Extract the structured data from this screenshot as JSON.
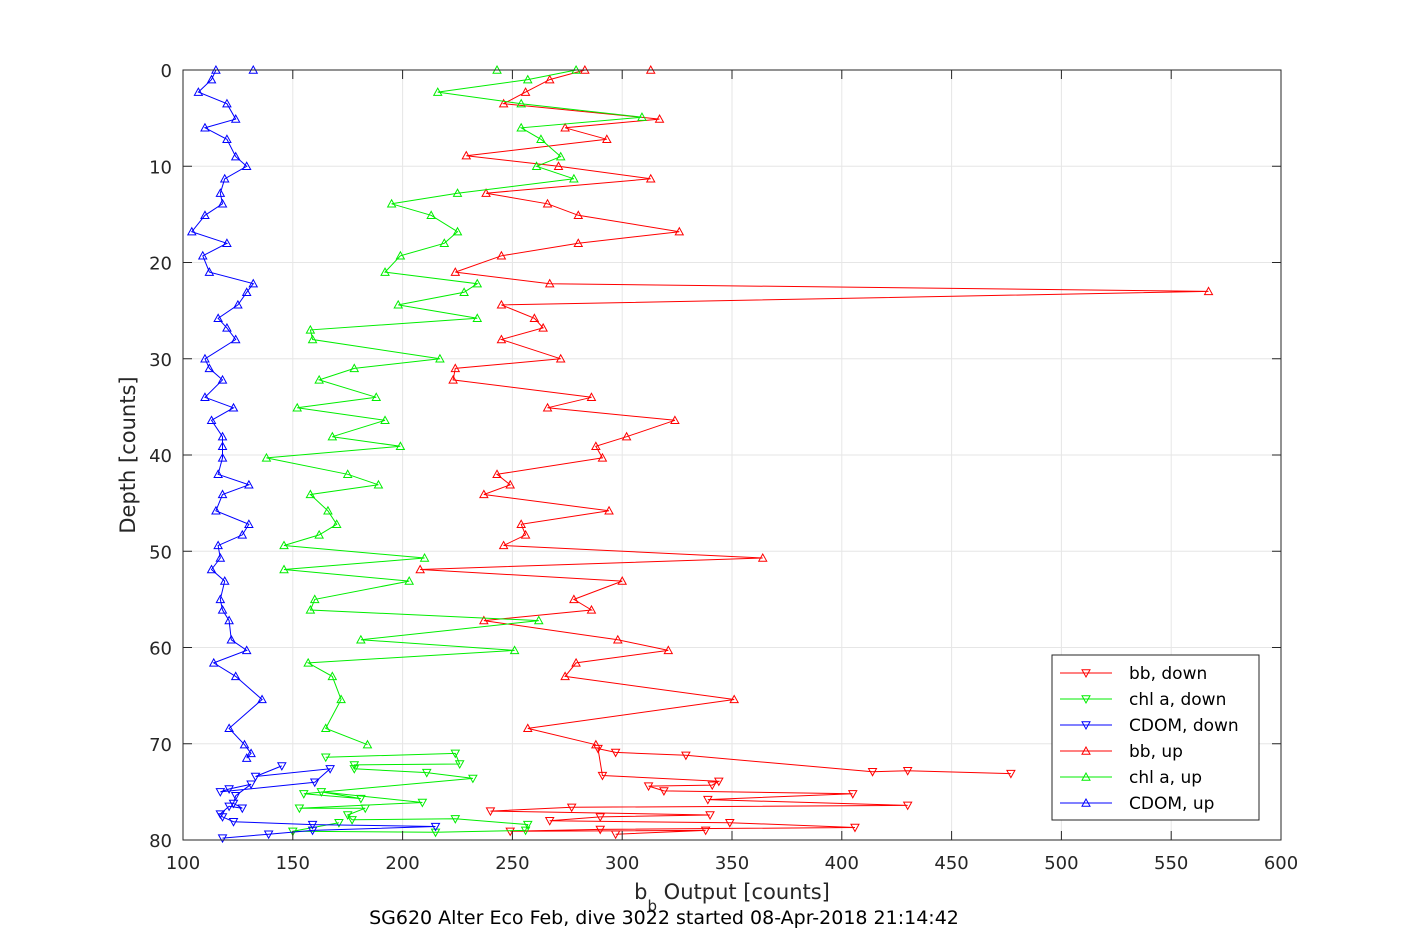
{
  "chart_data": {
    "type": "line",
    "xlabel_main": "b",
    "xlabel_sub": "b",
    "xlabel_rest": " Output [counts]",
    "ylabel": "Depth [counts]",
    "subtitle": "SG620 Alter Eco Feb, dive 3022 started 08-Apr-2018 21:14:42",
    "xlim": [
      100,
      600
    ],
    "ylim": [
      0,
      80
    ],
    "y_reversed": true,
    "grid": true,
    "legend_position": "bottom-right",
    "xticks": [
      "100",
      "150",
      "200",
      "250",
      "300",
      "350",
      "400",
      "450",
      "500",
      "550",
      "600"
    ],
    "yticks": [
      "0",
      "10",
      "20",
      "30",
      "40",
      "50",
      "60",
      "70",
      "80"
    ],
    "series": [
      {
        "name": "bb, down",
        "color": "#ff0000",
        "marker": "triangle-down",
        "points": [
          [
            477,
            73.1
          ],
          [
            430,
            72.8
          ],
          [
            414,
            72.9
          ],
          [
            329,
            71.2
          ],
          [
            297,
            70.9
          ],
          [
            289,
            70.5
          ],
          [
            291,
            73.3
          ],
          [
            344,
            73.9
          ],
          [
            341,
            74.3
          ],
          [
            312,
            74.4
          ],
          [
            319,
            74.9
          ],
          [
            405,
            75.2
          ],
          [
            339,
            75.8
          ],
          [
            430,
            76.4
          ],
          [
            277,
            76.6
          ],
          [
            240,
            77.0
          ],
          [
            340,
            77.4
          ],
          [
            290,
            77.6
          ],
          [
            267,
            78.0
          ],
          [
            349,
            78.2
          ],
          [
            406,
            78.7
          ],
          [
            290,
            78.9
          ],
          [
            249,
            79.1
          ],
          [
            338,
            79.0
          ],
          [
            297,
            79.4
          ]
        ]
      },
      {
        "name": "chl a, down",
        "color": "#00ee00",
        "marker": "triangle-down",
        "points": [
          [
            165,
            71.4
          ],
          [
            224,
            71.0
          ],
          [
            226,
            72.1
          ],
          [
            178,
            72.2
          ],
          [
            178,
            72.6
          ],
          [
            211,
            73.0
          ],
          [
            232,
            73.6
          ],
          [
            155,
            75.2
          ],
          [
            181,
            75.7
          ],
          [
            163,
            75.0
          ],
          [
            209,
            76.1
          ],
          [
            153,
            76.7
          ],
          [
            183,
            76.7
          ],
          [
            175,
            77.4
          ],
          [
            177,
            77.9
          ],
          [
            224,
            77.8
          ],
          [
            257,
            78.4
          ],
          [
            256,
            79.0
          ],
          [
            215,
            79.2
          ],
          [
            150,
            79.1
          ],
          [
            171,
            78.2
          ]
        ]
      },
      {
        "name": "CDOM, down",
        "color": "#0000ff",
        "marker": "triangle-down",
        "points": [
          [
            145,
            72.3
          ],
          [
            133,
            73.4
          ],
          [
            167,
            72.6
          ],
          [
            160,
            74.0
          ],
          [
            117,
            75.0
          ],
          [
            121,
            74.7
          ],
          [
            131,
            74.2
          ],
          [
            124,
            75.4
          ],
          [
            123,
            76.2
          ],
          [
            127,
            76.7
          ],
          [
            121,
            76.5
          ],
          [
            117,
            77.3
          ],
          [
            118,
            77.6
          ],
          [
            123,
            78.1
          ],
          [
            159,
            78.4
          ],
          [
            215,
            78.6
          ],
          [
            159,
            79.0
          ],
          [
            139,
            79.4
          ],
          [
            118,
            79.8
          ]
        ]
      },
      {
        "name": "bb, up",
        "color": "#ff0000",
        "marker": "triangle-up",
        "points": [
          [
            313,
            0.0
          ],
          [
            283,
            0.0
          ],
          [
            267,
            1.0
          ],
          [
            256,
            2.3
          ],
          [
            246,
            3.5
          ],
          [
            317,
            5.1
          ],
          [
            274,
            6.0
          ],
          [
            293,
            7.2
          ],
          [
            229,
            8.9
          ],
          [
            271,
            10.0
          ],
          [
            313,
            11.3
          ],
          [
            238,
            12.8
          ],
          [
            266,
            13.9
          ],
          [
            280,
            15.1
          ],
          [
            326,
            16.8
          ],
          [
            280,
            18.0
          ],
          [
            245,
            19.3
          ],
          [
            224,
            21.0
          ],
          [
            267,
            22.2
          ],
          [
            567,
            23.0
          ],
          [
            245,
            24.4
          ],
          [
            260,
            25.8
          ],
          [
            264,
            26.8
          ],
          [
            245,
            28.0
          ],
          [
            272,
            30.0
          ],
          [
            224,
            31.0
          ],
          [
            223,
            32.2
          ],
          [
            286,
            34.0
          ],
          [
            266,
            35.1
          ],
          [
            324,
            36.4
          ],
          [
            302,
            38.1
          ],
          [
            288,
            39.1
          ],
          [
            291,
            40.3
          ],
          [
            243,
            42.0
          ],
          [
            249,
            43.1
          ],
          [
            237,
            44.1
          ],
          [
            294,
            45.8
          ],
          [
            254,
            47.2
          ],
          [
            256,
            48.3
          ],
          [
            246,
            49.4
          ],
          [
            364,
            50.7
          ],
          [
            208,
            51.9
          ],
          [
            300,
            53.1
          ],
          [
            278,
            55.0
          ],
          [
            286,
            56.1
          ],
          [
            237,
            57.2
          ],
          [
            298,
            59.2
          ],
          [
            321,
            60.3
          ],
          [
            279,
            61.6
          ],
          [
            274,
            63.0
          ],
          [
            351,
            65.4
          ],
          [
            257,
            68.4
          ],
          [
            288,
            70.1
          ]
        ]
      },
      {
        "name": "chl a, up",
        "color": "#00ee00",
        "marker": "triangle-up",
        "points": [
          [
            243,
            0.0
          ],
          [
            279,
            0.0
          ],
          [
            257,
            1.0
          ],
          [
            216,
            2.3
          ],
          [
            254,
            3.5
          ],
          [
            309,
            4.9
          ],
          [
            254,
            6.0
          ],
          [
            263,
            7.2
          ],
          [
            272,
            9.0
          ],
          [
            261,
            10.0
          ],
          [
            278,
            11.3
          ],
          [
            225,
            12.8
          ],
          [
            195,
            13.9
          ],
          [
            213,
            15.1
          ],
          [
            225,
            16.8
          ],
          [
            219,
            18.0
          ],
          [
            199,
            19.3
          ],
          [
            192,
            21.0
          ],
          [
            234,
            22.2
          ],
          [
            228,
            23.1
          ],
          [
            198,
            24.4
          ],
          [
            234,
            25.8
          ],
          [
            158,
            27.0
          ],
          [
            159,
            28.0
          ],
          [
            217,
            30.0
          ],
          [
            178,
            31.0
          ],
          [
            162,
            32.2
          ],
          [
            188,
            34.0
          ],
          [
            152,
            35.1
          ],
          [
            192,
            36.4
          ],
          [
            168,
            38.1
          ],
          [
            199,
            39.1
          ],
          [
            138,
            40.3
          ],
          [
            175,
            42.0
          ],
          [
            189,
            43.1
          ],
          [
            158,
            44.1
          ],
          [
            166,
            45.8
          ],
          [
            170,
            47.2
          ],
          [
            162,
            48.3
          ],
          [
            146,
            49.4
          ],
          [
            210,
            50.7
          ],
          [
            146,
            51.9
          ],
          [
            203,
            53.1
          ],
          [
            160,
            55.0
          ],
          [
            158,
            56.1
          ],
          [
            262,
            57.2
          ],
          [
            181,
            59.2
          ],
          [
            251,
            60.3
          ],
          [
            157,
            61.6
          ],
          [
            168,
            63.0
          ],
          [
            172,
            65.4
          ],
          [
            165,
            68.4
          ],
          [
            184,
            70.1
          ]
        ]
      },
      {
        "name": "CDOM, up",
        "color": "#0000ff",
        "marker": "triangle-up",
        "points": [
          [
            132,
            0.0
          ],
          [
            115,
            0.0
          ],
          [
            113,
            1.0
          ],
          [
            107,
            2.3
          ],
          [
            120,
            3.5
          ],
          [
            124,
            5.1
          ],
          [
            110,
            6.0
          ],
          [
            120,
            7.2
          ],
          [
            124,
            9.0
          ],
          [
            129,
            10.0
          ],
          [
            119,
            11.3
          ],
          [
            117,
            12.8
          ],
          [
            118,
            13.9
          ],
          [
            110,
            15.1
          ],
          [
            104,
            16.8
          ],
          [
            120,
            18.0
          ],
          [
            109,
            19.3
          ],
          [
            112,
            21.0
          ],
          [
            132,
            22.2
          ],
          [
            129,
            23.1
          ],
          [
            125,
            24.4
          ],
          [
            116,
            25.8
          ],
          [
            120,
            26.8
          ],
          [
            124,
            28.0
          ],
          [
            110,
            30.0
          ],
          [
            112,
            31.0
          ],
          [
            118,
            32.2
          ],
          [
            110,
            34.0
          ],
          [
            123,
            35.1
          ],
          [
            113,
            36.4
          ],
          [
            118,
            38.1
          ],
          [
            118,
            39.1
          ],
          [
            118,
            40.3
          ],
          [
            116,
            42.0
          ],
          [
            130,
            43.1
          ],
          [
            118,
            44.1
          ],
          [
            115,
            45.8
          ],
          [
            130,
            47.2
          ],
          [
            127,
            48.3
          ],
          [
            116,
            49.4
          ],
          [
            117,
            50.7
          ],
          [
            113,
            51.9
          ],
          [
            119,
            53.1
          ],
          [
            117,
            55.0
          ],
          [
            118,
            56.1
          ],
          [
            121,
            57.2
          ],
          [
            122,
            59.2
          ],
          [
            129,
            60.3
          ],
          [
            114,
            61.6
          ],
          [
            124,
            63.0
          ],
          [
            136,
            65.4
          ],
          [
            121,
            68.4
          ],
          [
            128,
            70.1
          ],
          [
            131,
            71.0
          ],
          [
            129,
            71.5
          ]
        ]
      }
    ]
  }
}
